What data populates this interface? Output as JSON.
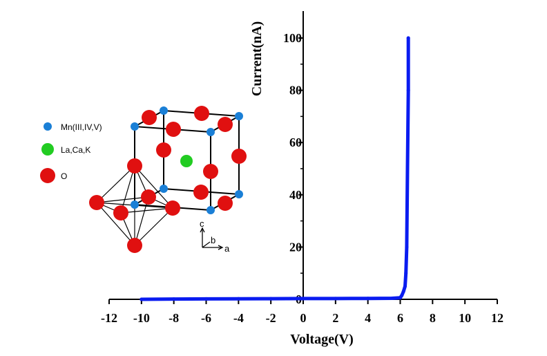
{
  "chart_data": {
    "type": "line",
    "title": "",
    "xlabel": "Voltage(V)",
    "ylabel": "Current(nA)",
    "xlim": [
      -12,
      12
    ],
    "ylim": [
      0,
      110
    ],
    "x_ticks": [
      -12,
      -10,
      -8,
      -6,
      -4,
      -2,
      0,
      2,
      4,
      6,
      8,
      10,
      12
    ],
    "y_ticks": [
      0,
      20,
      40,
      60,
      80,
      100
    ],
    "x_tick_labels": [
      "-12",
      "-10",
      "-8",
      "-6",
      "-4",
      "-2",
      "0",
      "2",
      "4",
      "6",
      "8",
      "10",
      "12"
    ],
    "y_tick_labels": [
      "0",
      "20",
      "40",
      "60",
      "80",
      "100"
    ],
    "grid": false,
    "series": [
      {
        "color": "#0a1cf0",
        "x": [
          -10,
          -8,
          -6,
          -4,
          -2,
          0,
          2,
          4,
          5.5,
          6.0,
          6.1,
          6.2,
          6.3,
          6.35,
          6.4,
          6.45,
          6.5,
          6.5
        ],
        "y": [
          0,
          0.1,
          0.15,
          0.2,
          0.25,
          0.3,
          0.3,
          0.35,
          0.4,
          0.6,
          1.5,
          3,
          5,
          10,
          20,
          50,
          80,
          100
        ]
      }
    ]
  },
  "inset": {
    "legend": [
      {
        "label": "Mn(III,IV,V)",
        "color": "#1a7fd6",
        "icon": "mn-atom-icon"
      },
      {
        "label": "La,Ca,K",
        "color": "#22cc22",
        "icon": "la-atom-icon"
      },
      {
        "label": "O",
        "color": "#e01010",
        "icon": "o-atom-icon"
      }
    ],
    "axes_labels": {
      "c": "c",
      "b": "b",
      "a": "a"
    }
  }
}
